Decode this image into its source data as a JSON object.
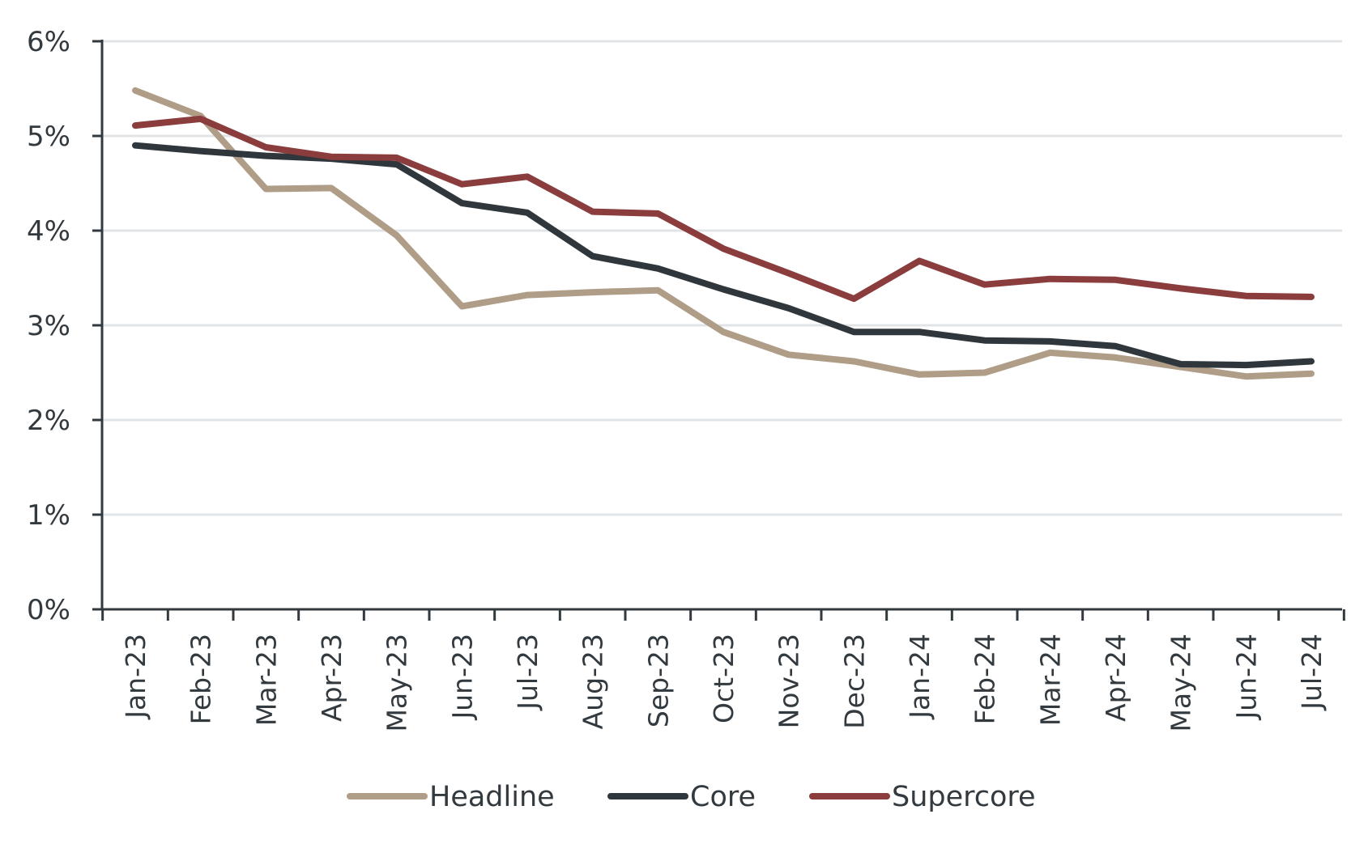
{
  "chart_data": {
    "type": "line",
    "title": "",
    "xlabel": "",
    "ylabel": "",
    "ylim": [
      0,
      6
    ],
    "yticks": [
      "0%",
      "1%",
      "2%",
      "3%",
      "4%",
      "5%",
      "6%"
    ],
    "grid": true,
    "legend_placement": "bottom",
    "categories": [
      "Jan-23",
      "Feb-23",
      "Mar-23",
      "Apr-23",
      "May-23",
      "Jun-23",
      "Jul-23",
      "Aug-23",
      "Sep-23",
      "Oct-23",
      "Nov-23",
      "Dec-23",
      "Jan-24",
      "Feb-24",
      "Mar-24",
      "Apr-24",
      "May-24",
      "Jun-24",
      "Jul-24"
    ],
    "series": [
      {
        "name": "Headline",
        "color": "#b09d87",
        "values": [
          5.48,
          5.21,
          4.44,
          4.45,
          3.95,
          3.2,
          3.32,
          3.35,
          3.37,
          2.93,
          2.69,
          2.62,
          2.48,
          2.5,
          2.71,
          2.66,
          2.56,
          2.46,
          2.49
        ]
      },
      {
        "name": "Core",
        "color": "#30373c",
        "values": [
          4.9,
          4.84,
          4.79,
          4.76,
          4.7,
          4.29,
          4.19,
          3.73,
          3.6,
          3.38,
          3.18,
          2.93,
          2.93,
          2.84,
          2.83,
          2.78,
          2.59,
          2.58,
          2.62
        ]
      },
      {
        "name": "Supercore",
        "color": "#8b3d3e",
        "values": [
          5.11,
          5.18,
          4.88,
          4.78,
          4.77,
          4.49,
          4.57,
          4.2,
          4.18,
          3.81,
          3.55,
          3.28,
          3.68,
          3.43,
          3.49,
          3.48,
          3.39,
          3.31,
          3.3
        ]
      }
    ]
  }
}
